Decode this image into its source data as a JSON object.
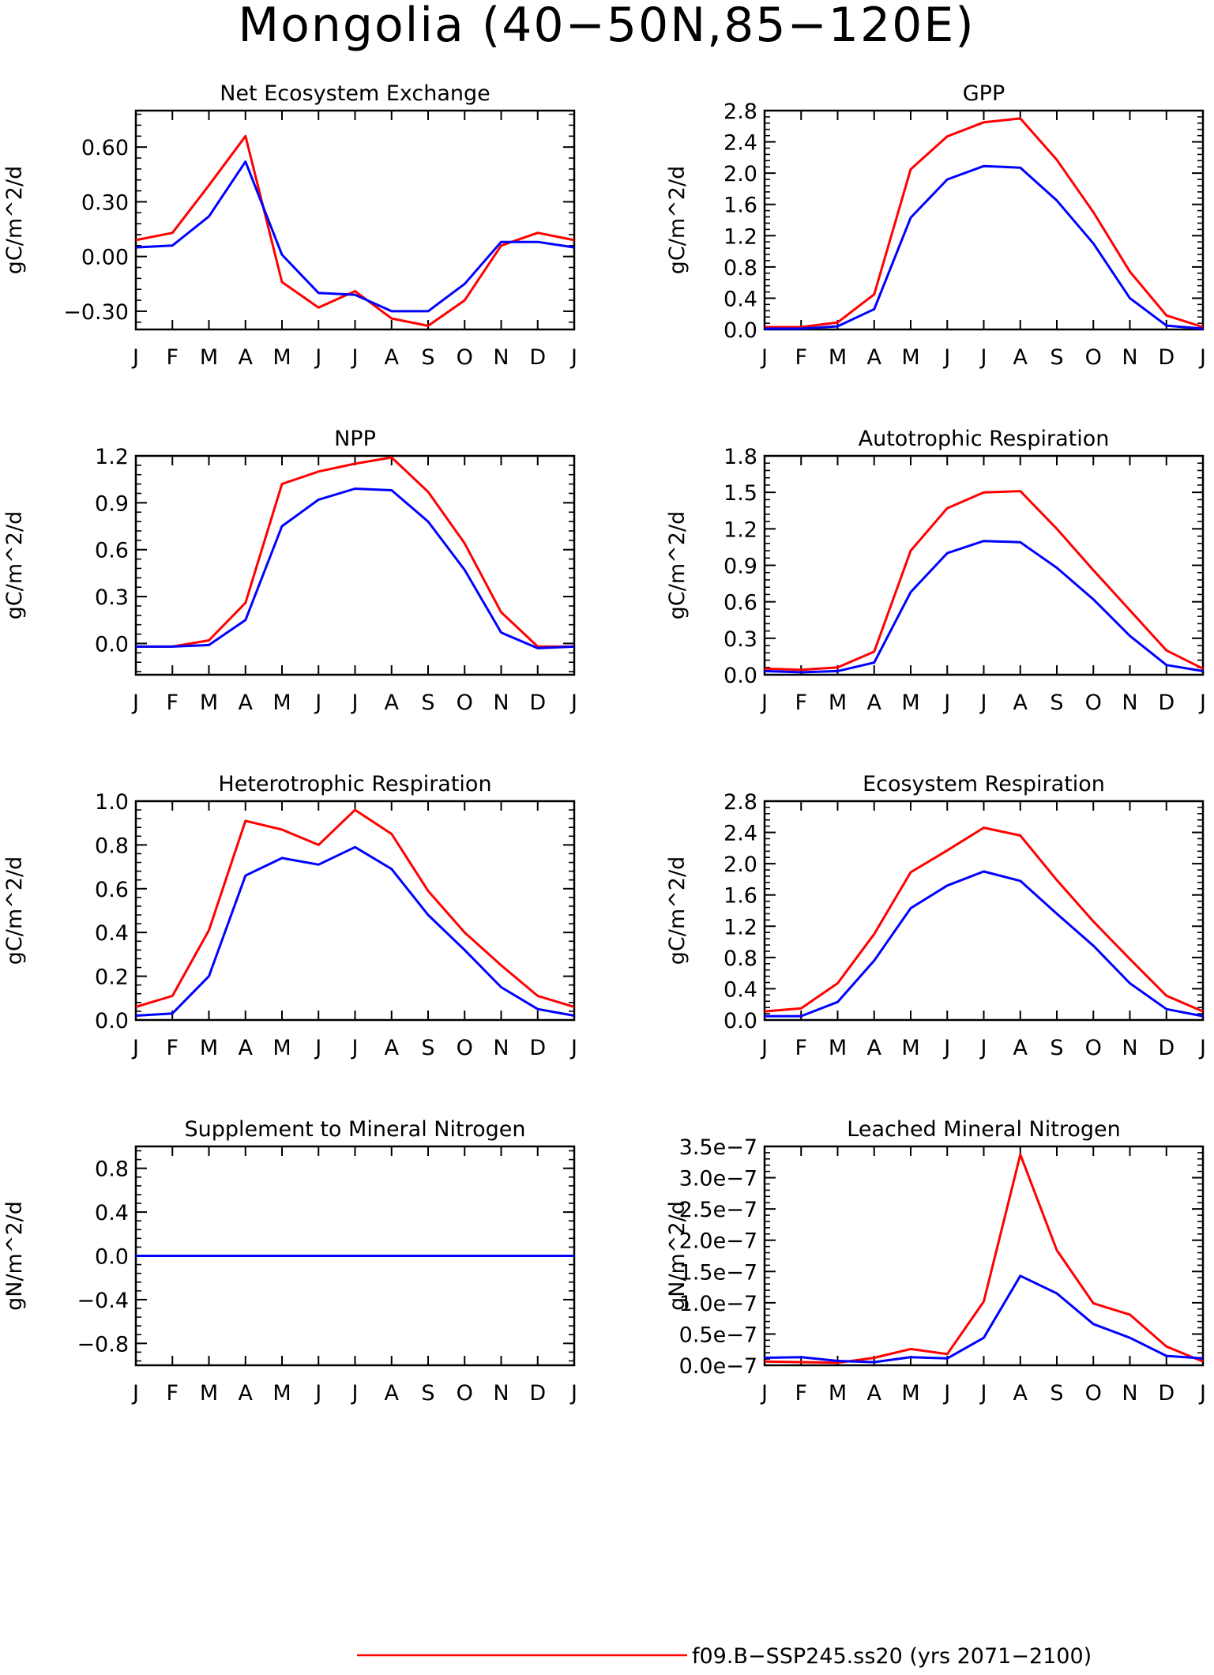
{
  "figure": {
    "title": "Mongolia (40−50N,85−120E)",
    "legend": [
      {
        "label": "f09.B−SSP245.ss20 (yrs 2071−2100)",
        "color": "#ff0000"
      }
    ]
  },
  "chart_data": [
    {
      "id": "nee",
      "type": "line",
      "title": "Net Ecosystem Exchange",
      "ylabel": "gC/m^2/d",
      "categories": [
        "J",
        "F",
        "M",
        "A",
        "M",
        "J",
        "J",
        "A",
        "S",
        "O",
        "N",
        "D",
        "J"
      ],
      "ylim": [
        -0.4,
        0.8
      ],
      "yticks": [
        -0.3,
        0.0,
        0.3,
        0.6
      ],
      "ytick_labels": [
        "−0.30",
        "0.00",
        "0.30",
        "0.60"
      ],
      "minor_step": 0.06,
      "series": [
        {
          "color": "#ff0000",
          "values": [
            0.09,
            0.13,
            0.39,
            0.66,
            -0.14,
            -0.28,
            -0.19,
            -0.34,
            -0.38,
            -0.24,
            0.06,
            0.13,
            0.09
          ]
        },
        {
          "color": "#0000ff",
          "values": [
            0.05,
            0.06,
            0.22,
            0.52,
            0.01,
            -0.2,
            -0.21,
            -0.3,
            -0.3,
            -0.15,
            0.08,
            0.08,
            0.05
          ]
        }
      ]
    },
    {
      "id": "gpp",
      "type": "line",
      "title": "GPP",
      "ylabel": "gC/m^2/d",
      "categories": [
        "J",
        "F",
        "M",
        "A",
        "M",
        "J",
        "J",
        "A",
        "S",
        "O",
        "N",
        "D",
        "J"
      ],
      "ylim": [
        0,
        2.8
      ],
      "yticks": [
        0,
        0.4,
        0.8,
        1.2,
        1.6,
        2.0,
        2.4,
        2.8
      ],
      "ytick_labels": [
        "0.0",
        "0.4",
        "0.8",
        "1.2",
        "1.6",
        "2.0",
        "2.4",
        "2.8"
      ],
      "minor_step": 0.08,
      "series": [
        {
          "color": "#ff0000",
          "values": [
            0.03,
            0.03,
            0.09,
            0.45,
            2.05,
            2.47,
            2.65,
            2.7,
            2.17,
            1.5,
            0.74,
            0.18,
            0.03
          ]
        },
        {
          "color": "#0000ff",
          "values": [
            0.01,
            0.01,
            0.04,
            0.26,
            1.43,
            1.92,
            2.09,
            2.07,
            1.65,
            1.1,
            0.4,
            0.05,
            0.01
          ]
        }
      ]
    },
    {
      "id": "npp",
      "type": "line",
      "title": "NPP",
      "ylabel": "gC/m^2/d",
      "categories": [
        "J",
        "F",
        "M",
        "A",
        "M",
        "J",
        "J",
        "A",
        "S",
        "O",
        "N",
        "D",
        "J"
      ],
      "ylim": [
        -0.2,
        1.2
      ],
      "yticks": [
        0.0,
        0.3,
        0.6,
        0.9,
        1.2
      ],
      "ytick_labels": [
        "0.0",
        "0.3",
        "0.6",
        "0.9",
        "1.2"
      ],
      "minor_step": 0.06,
      "series": [
        {
          "color": "#ff0000",
          "values": [
            -0.02,
            -0.02,
            0.02,
            0.26,
            1.02,
            1.1,
            1.15,
            1.19,
            0.97,
            0.64,
            0.2,
            -0.02,
            -0.02
          ]
        },
        {
          "color": "#0000ff",
          "values": [
            -0.02,
            -0.02,
            -0.01,
            0.15,
            0.75,
            0.92,
            0.99,
            0.98,
            0.78,
            0.47,
            0.07,
            -0.03,
            -0.02
          ]
        }
      ]
    },
    {
      "id": "ar",
      "type": "line",
      "title": "Autotrophic Respiration",
      "ylabel": "gC/m^2/d",
      "categories": [
        "J",
        "F",
        "M",
        "A",
        "M",
        "J",
        "J",
        "A",
        "S",
        "O",
        "N",
        "D",
        "J"
      ],
      "ylim": [
        0,
        1.8
      ],
      "yticks": [
        0,
        0.3,
        0.6,
        0.9,
        1.2,
        1.5,
        1.8
      ],
      "ytick_labels": [
        "0.0",
        "0.3",
        "0.6",
        "0.9",
        "1.2",
        "1.5",
        "1.8"
      ],
      "minor_step": 0.06,
      "series": [
        {
          "color": "#ff0000",
          "values": [
            0.05,
            0.04,
            0.06,
            0.19,
            1.02,
            1.37,
            1.5,
            1.51,
            1.2,
            0.86,
            0.53,
            0.2,
            0.05
          ]
        },
        {
          "color": "#0000ff",
          "values": [
            0.03,
            0.02,
            0.03,
            0.1,
            0.68,
            1.0,
            1.1,
            1.09,
            0.88,
            0.62,
            0.32,
            0.08,
            0.03
          ]
        }
      ]
    },
    {
      "id": "hr",
      "type": "line",
      "title": "Heterotrophic Respiration",
      "ylabel": "gC/m^2/d",
      "categories": [
        "J",
        "F",
        "M",
        "A",
        "M",
        "J",
        "J",
        "A",
        "S",
        "O",
        "N",
        "D",
        "J"
      ],
      "ylim": [
        0,
        1.0
      ],
      "yticks": [
        0,
        0.2,
        0.4,
        0.6,
        0.8,
        1.0
      ],
      "ytick_labels": [
        "0.0",
        "0.2",
        "0.4",
        "0.6",
        "0.8",
        "1.0"
      ],
      "minor_step": 0.04,
      "series": [
        {
          "color": "#ff0000",
          "values": [
            0.06,
            0.11,
            0.41,
            0.91,
            0.87,
            0.8,
            0.96,
            0.85,
            0.59,
            0.4,
            0.25,
            0.11,
            0.06
          ]
        },
        {
          "color": "#0000ff",
          "values": [
            0.02,
            0.03,
            0.2,
            0.66,
            0.74,
            0.71,
            0.79,
            0.69,
            0.48,
            0.32,
            0.15,
            0.05,
            0.02
          ]
        }
      ]
    },
    {
      "id": "er",
      "type": "line",
      "title": "Ecosystem Respiration",
      "ylabel": "gC/m^2/d",
      "categories": [
        "J",
        "F",
        "M",
        "A",
        "M",
        "J",
        "J",
        "A",
        "S",
        "O",
        "N",
        "D",
        "J"
      ],
      "ylim": [
        0,
        2.8
      ],
      "yticks": [
        0,
        0.4,
        0.8,
        1.2,
        1.6,
        2.0,
        2.4,
        2.8
      ],
      "ytick_labels": [
        "0.0",
        "0.4",
        "0.8",
        "1.2",
        "1.6",
        "2.0",
        "2.4",
        "2.8"
      ],
      "minor_step": 0.08,
      "series": [
        {
          "color": "#ff0000",
          "values": [
            0.11,
            0.15,
            0.47,
            1.1,
            1.89,
            2.17,
            2.46,
            2.36,
            1.79,
            1.26,
            0.78,
            0.31,
            0.11
          ]
        },
        {
          "color": "#0000ff",
          "values": [
            0.05,
            0.05,
            0.23,
            0.76,
            1.43,
            1.72,
            1.9,
            1.78,
            1.36,
            0.95,
            0.47,
            0.14,
            0.05
          ]
        }
      ]
    },
    {
      "id": "smn",
      "type": "line",
      "title": "Supplement to Mineral Nitrogen",
      "ylabel": "gN/m^2/d",
      "categories": [
        "J",
        "F",
        "M",
        "A",
        "M",
        "J",
        "J",
        "A",
        "S",
        "O",
        "N",
        "D",
        "J"
      ],
      "ylim": [
        -1.0,
        1.0
      ],
      "yticks": [
        -0.8,
        -0.4,
        0.0,
        0.4,
        0.8
      ],
      "ytick_labels": [
        "−0.8",
        "−0.4",
        "0.0",
        "0.4",
        "0.8"
      ],
      "minor_step": 0.08,
      "series": [
        {
          "color": "#ff0000",
          "values": [
            0,
            0,
            0,
            0,
            0,
            0,
            0,
            0,
            0,
            0,
            0,
            0,
            0
          ]
        },
        {
          "color": "#0000ff",
          "values": [
            0,
            0,
            0,
            0,
            0,
            0,
            0,
            0,
            0,
            0,
            0,
            0,
            0
          ]
        }
      ]
    },
    {
      "id": "lmn",
      "type": "line",
      "title": "Leached Mineral Nitrogen",
      "ylabel": "gN/m^2/d",
      "categories": [
        "J",
        "F",
        "M",
        "A",
        "M",
        "J",
        "J",
        "A",
        "S",
        "O",
        "N",
        "D",
        "J"
      ],
      "ylim": [
        0,
        3.5e-07
      ],
      "yticks": [
        0,
        5e-08,
        1e-07,
        1.5e-07,
        2e-07,
        2.5e-07,
        3e-07,
        3.5e-07
      ],
      "ytick_labels": [
        "0.0e−7",
        "0.5e−7",
        "1.0e−7",
        "1.5e−7",
        "2.0e−7",
        "2.5e−7",
        "3.0e−7",
        "3.5e−7"
      ],
      "minor_step": 1e-08,
      "series": [
        {
          "color": "#ff0000",
          "values": [
            6e-09,
            5e-09,
            4e-09,
            1.2e-08,
            2.6e-08,
            1.8e-08,
            1.02e-07,
            3.37e-07,
            1.84e-07,
            9.9e-08,
            8.1e-08,
            3e-08,
            6e-09
          ]
        },
        {
          "color": "#0000ff",
          "values": [
            1.2e-08,
            1.3e-08,
            7e-09,
            5e-09,
            1.3e-08,
            1.1e-08,
            4.4e-08,
            1.43e-07,
            1.15e-07,
            6.6e-08,
            4.4e-08,
            1.5e-08,
            1.1e-08
          ]
        }
      ]
    }
  ]
}
